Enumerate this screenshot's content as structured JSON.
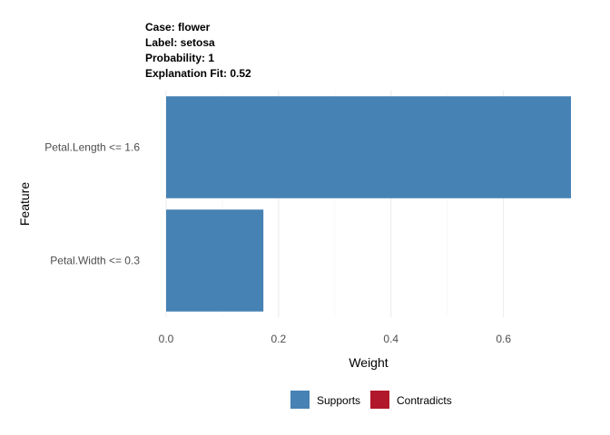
{
  "header": {
    "case_line": "Case: flower",
    "label_line": "Label: setosa",
    "probability_line": "Probability: 1",
    "fit_line": "Explanation Fit: 0.52"
  },
  "chart_data": {
    "type": "bar",
    "orientation": "horizontal",
    "categories": [
      "Petal.Length <= 1.6",
      "Petal.Width <= 0.3"
    ],
    "series": [
      {
        "name": "Supports",
        "values": [
          0.72,
          0.173
        ]
      }
    ],
    "xlabel": "Weight",
    "ylabel": "Feature",
    "xlim": [
      0,
      0.72
    ],
    "x_ticks": [
      "0.0",
      "0.2",
      "0.4",
      "0.6"
    ],
    "x_tick_values": [
      0,
      0.2,
      0.4,
      0.6
    ],
    "grid": true,
    "legend_position": "bottom",
    "legend": [
      {
        "label": "Supports",
        "color": "#4682b4"
      },
      {
        "label": "Contradicts",
        "color": "#b2182b"
      }
    ]
  }
}
